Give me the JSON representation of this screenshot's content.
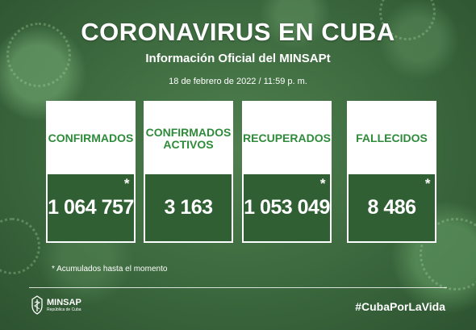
{
  "header": {
    "title": "CORONAVIRUS EN CUBA",
    "subtitle": "Información Oficial del MINSAPt",
    "date": "18 de febrero de 2022 / 11:59 p. m."
  },
  "cards": [
    {
      "label": "CONFIRMADOS",
      "value": "1 064 757",
      "asterisk": "*"
    },
    {
      "label": "CONFIRMADOS ACTIVOS",
      "value": "3 163",
      "asterisk": ""
    },
    {
      "label": "RECUPERADOS",
      "value": "1 053 049",
      "asterisk": "*"
    },
    {
      "label": "FALLECIDOS",
      "value": "8 486",
      "asterisk": "*"
    }
  ],
  "footnote": "* Acumulados hasta el momento",
  "footer": {
    "logo_name": "MINSAP",
    "logo_sub": "República de Cuba",
    "hashtag": "#CubaPorLaVida"
  },
  "colors": {
    "background": "#3f6d41",
    "label_green": "#2e8b3a",
    "card_header": "#ffffff"
  }
}
